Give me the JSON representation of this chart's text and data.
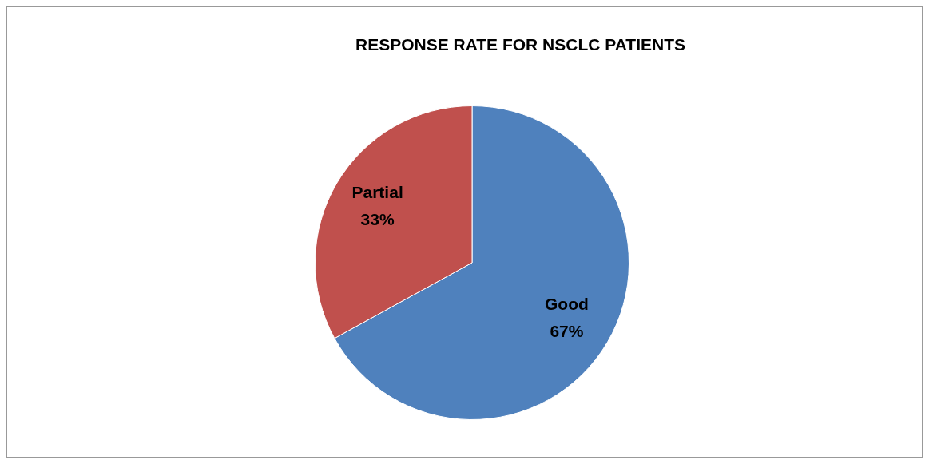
{
  "chart_data": {
    "type": "pie",
    "title": "RESPONSE RATE FOR NSCLC PATIENTS",
    "categories": [
      "Good",
      "Partial"
    ],
    "values": [
      67,
      33
    ],
    "colors": [
      "#4f81bd",
      "#c0504d"
    ],
    "value_labels": [
      "67%",
      "33%"
    ],
    "legend": false
  }
}
